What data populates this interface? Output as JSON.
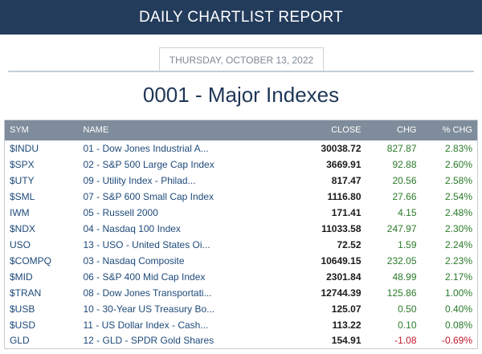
{
  "header": {
    "title": "DAILY CHARTLIST REPORT"
  },
  "report": {
    "date": "THURSDAY, OCTOBER 13, 2022",
    "title": "0001 - Major Indexes"
  },
  "table": {
    "columns": [
      "SYM",
      "NAME",
      "CLOSE",
      "CHG",
      "% CHG"
    ],
    "rows": [
      {
        "sym": "$INDU",
        "name": "01 - Dow Jones Industrial A...",
        "close": "30038.72",
        "chg": "827.87",
        "pct": "2.83%",
        "dir": "up"
      },
      {
        "sym": "$SPX",
        "name": "02 - S&P 500 Large Cap Index",
        "close": "3669.91",
        "chg": "92.88",
        "pct": "2.60%",
        "dir": "up"
      },
      {
        "sym": "$UTY",
        "name": "09 - Utility Index - Philad...",
        "close": "817.47",
        "chg": "20.56",
        "pct": "2.58%",
        "dir": "up"
      },
      {
        "sym": "$SML",
        "name": "07 - S&P 600 Small Cap Index",
        "close": "1116.80",
        "chg": "27.66",
        "pct": "2.54%",
        "dir": "up"
      },
      {
        "sym": "IWM",
        "name": "05 - Russell 2000",
        "close": "171.41",
        "chg": "4.15",
        "pct": "2.48%",
        "dir": "up"
      },
      {
        "sym": "$NDX",
        "name": "04 - Nasdaq 100 Index",
        "close": "11033.58",
        "chg": "247.97",
        "pct": "2.30%",
        "dir": "up"
      },
      {
        "sym": "USO",
        "name": "13 - USO - United States Oi...",
        "close": "72.52",
        "chg": "1.59",
        "pct": "2.24%",
        "dir": "up"
      },
      {
        "sym": "$COMPQ",
        "name": "03 - Nasdaq Composite",
        "close": "10649.15",
        "chg": "232.05",
        "pct": "2.23%",
        "dir": "up"
      },
      {
        "sym": "$MID",
        "name": "06 - S&P 400 Mid Cap Index",
        "close": "2301.84",
        "chg": "48.99",
        "pct": "2.17%",
        "dir": "up"
      },
      {
        "sym": "$TRAN",
        "name": "08 - Dow Jones Transportati...",
        "close": "12744.39",
        "chg": "125.86",
        "pct": "1.00%",
        "dir": "up"
      },
      {
        "sym": "$USB",
        "name": "10 - 30-Year US Treasury Bo...",
        "close": "125.07",
        "chg": "0.50",
        "pct": "0.40%",
        "dir": "up"
      },
      {
        "sym": "$USD",
        "name": "11 - US Dollar Index - Cash...",
        "close": "113.22",
        "chg": "0.10",
        "pct": "0.08%",
        "dir": "up"
      },
      {
        "sym": "GLD",
        "name": "12 - GLD - SPDR Gold Shares",
        "close": "154.91",
        "chg": "-1.08",
        "pct": "-0.69%",
        "dir": "down"
      }
    ]
  }
}
